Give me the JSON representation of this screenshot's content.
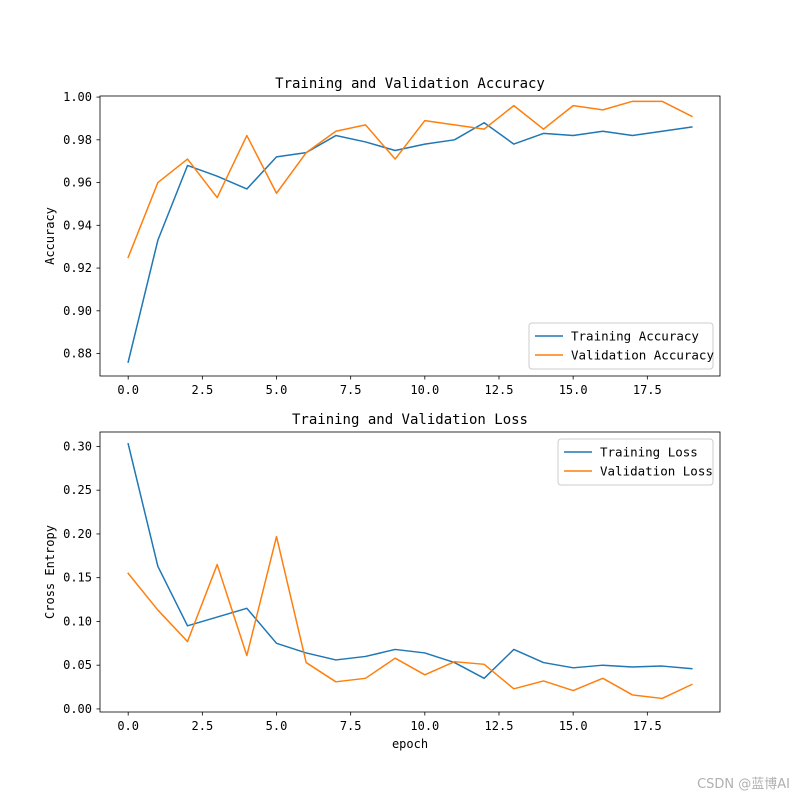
{
  "colors": {
    "training": "#1f77b4",
    "validation": "#ff7f0e"
  },
  "watermark": "CSDN @蓝博AI",
  "chart_data": [
    {
      "type": "line",
      "title": "Training and Validation Accuracy",
      "xlabel": "",
      "ylabel": "Accuracy",
      "xlim": [
        -0.95,
        19.95
      ],
      "ylim": [
        0.8695,
        1.0005
      ],
      "xticks": [
        0,
        2.5,
        5,
        7.5,
        10,
        12.5,
        15,
        17.5
      ],
      "xtick_labels": [
        "0.0",
        "2.5",
        "5.0",
        "7.5",
        "10.0",
        "12.5",
        "15.0",
        "17.5"
      ],
      "yticks": [
        0.88,
        0.9,
        0.92,
        0.94,
        0.96,
        0.98,
        1.0
      ],
      "ytick_labels": [
        "0.88",
        "0.90",
        "0.92",
        "0.94",
        "0.96",
        "0.98",
        "1.00"
      ],
      "legend_position": "lower-right",
      "x": [
        0,
        1,
        2,
        3,
        4,
        5,
        6,
        7,
        8,
        9,
        10,
        11,
        12,
        13,
        14,
        15,
        16,
        17,
        18,
        19
      ],
      "series": [
        {
          "name": "Training Accuracy",
          "color": "#1f77b4",
          "values": [
            0.876,
            0.933,
            0.968,
            0.963,
            0.957,
            0.972,
            0.974,
            0.982,
            0.979,
            0.975,
            0.978,
            0.98,
            0.988,
            0.978,
            0.983,
            0.982,
            0.984,
            0.982,
            0.984,
            0.986
          ]
        },
        {
          "name": "Validation Accuracy",
          "color": "#ff7f0e",
          "values": [
            0.925,
            0.96,
            0.971,
            0.953,
            0.982,
            0.955,
            0.974,
            0.984,
            0.987,
            0.971,
            0.989,
            0.987,
            0.985,
            0.996,
            0.985,
            0.996,
            0.994,
            0.998,
            0.998,
            0.991
          ]
        }
      ]
    },
    {
      "type": "line",
      "title": "Training and Validation Loss",
      "xlabel": "epoch",
      "ylabel": "Cross Entropy",
      "xlim": [
        -0.95,
        19.95
      ],
      "ylim": [
        -0.0035,
        0.3165
      ],
      "xticks": [
        0,
        2.5,
        5,
        7.5,
        10,
        12.5,
        15,
        17.5
      ],
      "xtick_labels": [
        "0.0",
        "2.5",
        "5.0",
        "7.5",
        "10.0",
        "12.5",
        "15.0",
        "17.5"
      ],
      "yticks": [
        0.0,
        0.05,
        0.1,
        0.15,
        0.2,
        0.25,
        0.3
      ],
      "ytick_labels": [
        "0.00",
        "0.05",
        "0.10",
        "0.15",
        "0.20",
        "0.25",
        "0.30"
      ],
      "legend_position": "upper-right",
      "x": [
        0,
        1,
        2,
        3,
        4,
        5,
        6,
        7,
        8,
        9,
        10,
        11,
        12,
        13,
        14,
        15,
        16,
        17,
        18,
        19
      ],
      "series": [
        {
          "name": "Training Loss",
          "color": "#1f77b4",
          "values": [
            0.303,
            0.163,
            0.095,
            0.105,
            0.115,
            0.075,
            0.064,
            0.056,
            0.06,
            0.068,
            0.064,
            0.053,
            0.035,
            0.068,
            0.053,
            0.047,
            0.05,
            0.048,
            0.049,
            0.046
          ]
        },
        {
          "name": "Validation Loss",
          "color": "#ff7f0e",
          "values": [
            0.155,
            0.113,
            0.077,
            0.165,
            0.061,
            0.197,
            0.053,
            0.031,
            0.035,
            0.058,
            0.039,
            0.054,
            0.051,
            0.023,
            0.032,
            0.021,
            0.035,
            0.016,
            0.012,
            0.028
          ]
        }
      ]
    }
  ]
}
